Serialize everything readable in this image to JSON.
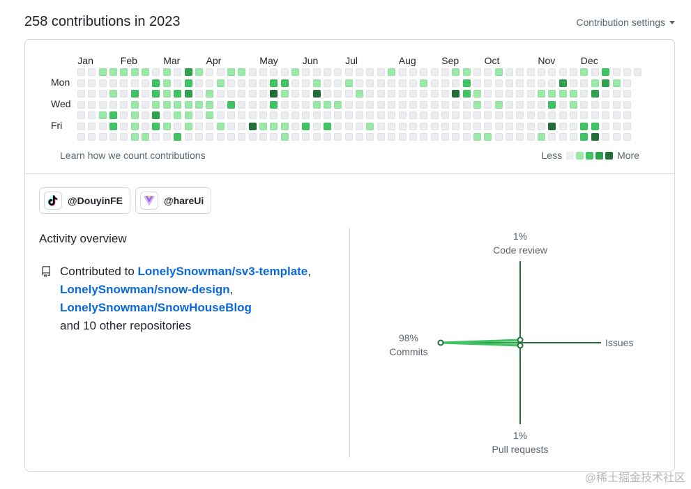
{
  "header": {
    "title": "258 contributions in 2023",
    "settings_label": "Contribution settings"
  },
  "calendar": {
    "months": [
      "Jan",
      "Feb",
      "Mar",
      "Apr",
      "May",
      "Jun",
      "Jul",
      "Aug",
      "Sep",
      "Oct",
      "Nov",
      "Dec"
    ],
    "month_week_index": [
      1,
      5,
      9,
      13,
      18,
      22,
      26,
      31,
      35,
      39,
      44,
      48
    ],
    "day_labels": [
      "Mon",
      "Wed",
      "Fri"
    ],
    "weeks": [
      [
        0,
        0,
        0,
        0,
        0,
        0,
        0
      ],
      [
        0,
        0,
        0,
        0,
        0,
        0,
        0
      ],
      [
        1,
        0,
        0,
        0,
        1,
        0,
        0
      ],
      [
        1,
        0,
        1,
        0,
        2,
        2,
        0
      ],
      [
        1,
        0,
        0,
        0,
        0,
        0,
        0
      ],
      [
        1,
        0,
        2,
        1,
        1,
        1,
        1
      ],
      [
        1,
        0,
        0,
        0,
        0,
        0,
        1
      ],
      [
        0,
        2,
        2,
        1,
        3,
        2,
        0
      ],
      [
        1,
        1,
        1,
        1,
        0,
        1,
        0
      ],
      [
        0,
        0,
        2,
        1,
        1,
        0,
        2
      ],
      [
        3,
        2,
        3,
        1,
        1,
        1,
        0
      ],
      [
        1,
        0,
        0,
        1,
        0,
        0,
        0
      ],
      [
        0,
        0,
        1,
        1,
        1,
        0,
        0
      ],
      [
        0,
        1,
        0,
        0,
        0,
        1,
        0
      ],
      [
        1,
        0,
        0,
        2,
        0,
        0,
        0
      ],
      [
        1,
        0,
        0,
        0,
        0,
        0,
        0
      ],
      [
        0,
        0,
        0,
        0,
        0,
        4,
        0
      ],
      [
        0,
        0,
        0,
        0,
        0,
        1,
        0
      ],
      [
        0,
        2,
        4,
        2,
        0,
        1,
        0
      ],
      [
        0,
        2,
        1,
        0,
        0,
        1,
        1
      ],
      [
        1,
        0,
        0,
        0,
        0,
        0,
        0
      ],
      [
        0,
        0,
        0,
        0,
        0,
        2,
        0
      ],
      [
        0,
        1,
        4,
        1,
        0,
        0,
        0
      ],
      [
        0,
        0,
        0,
        1,
        0,
        2,
        0
      ],
      [
        0,
        0,
        0,
        1,
        0,
        0,
        0
      ],
      [
        0,
        1,
        0,
        0,
        0,
        0,
        0
      ],
      [
        0,
        0,
        1,
        0,
        0,
        0,
        0
      ],
      [
        0,
        0,
        0,
        0,
        0,
        1,
        0
      ],
      [
        0,
        0,
        0,
        0,
        0,
        0,
        0
      ],
      [
        1,
        0,
        0,
        0,
        0,
        0,
        0
      ],
      [
        0,
        0,
        0,
        0,
        0,
        0,
        0
      ],
      [
        0,
        0,
        0,
        0,
        0,
        0,
        0
      ],
      [
        0,
        1,
        0,
        0,
        0,
        0,
        0
      ],
      [
        0,
        0,
        0,
        0,
        0,
        0,
        0
      ],
      [
        0,
        0,
        0,
        0,
        0,
        0,
        0
      ],
      [
        1,
        0,
        4,
        0,
        0,
        0,
        0
      ],
      [
        1,
        2,
        2,
        0,
        0,
        0,
        0
      ],
      [
        0,
        0,
        1,
        1,
        0,
        0,
        1
      ],
      [
        0,
        0,
        0,
        0,
        0,
        0,
        1
      ],
      [
        1,
        0,
        0,
        1,
        0,
        0,
        0
      ],
      [
        0,
        0,
        0,
        0,
        0,
        0,
        0
      ],
      [
        0,
        0,
        0,
        0,
        0,
        0,
        0
      ],
      [
        0,
        0,
        0,
        0,
        0,
        0,
        0
      ],
      [
        0,
        0,
        1,
        0,
        0,
        0,
        1
      ],
      [
        0,
        0,
        1,
        2,
        0,
        4,
        0
      ],
      [
        0,
        3,
        1,
        0,
        0,
        0,
        0
      ],
      [
        0,
        0,
        1,
        1,
        0,
        0,
        0
      ],
      [
        1,
        0,
        0,
        0,
        0,
        2,
        2
      ],
      [
        0,
        1,
        3,
        0,
        0,
        2,
        4
      ],
      [
        2,
        3,
        0,
        0,
        0,
        0,
        0
      ],
      [
        0,
        1,
        0,
        0,
        0,
        0,
        0
      ],
      [
        0,
        0,
        0,
        0,
        0,
        0,
        0
      ],
      [
        0
      ]
    ],
    "learn_link": "Learn how we count contributions",
    "legend_less": "Less",
    "legend_more": "More",
    "level_colors": [
      "#ebedf0",
      "#9be9a8",
      "#40c463",
      "#30a14e",
      "#216e39"
    ]
  },
  "orgs": [
    {
      "name": "@DouyinFE",
      "icon": "tiktok-logo-icon"
    },
    {
      "name": "@hareUi",
      "icon": "hareui-logo-icon"
    }
  ],
  "activity": {
    "title": "Activity overview",
    "contributed_prefix": "Contributed to",
    "repos": [
      "LonelySnowman/sv3-template",
      "LonelySnowman/snow-design",
      "LonelySnowman/SnowHouseBlog"
    ],
    "other_text": "and 10 other repositories"
  },
  "radar": {
    "code_review": {
      "pct": "1%",
      "label": "Code review"
    },
    "issues": {
      "pct": "",
      "label": "Issues"
    },
    "pull_requests": {
      "pct": "1%",
      "label": "Pull requests"
    },
    "commits": {
      "pct": "98%",
      "label": "Commits"
    },
    "accent_color": "#216e39",
    "fill_color": "#40c463"
  },
  "watermark": "@稀土掘金技术社区"
}
